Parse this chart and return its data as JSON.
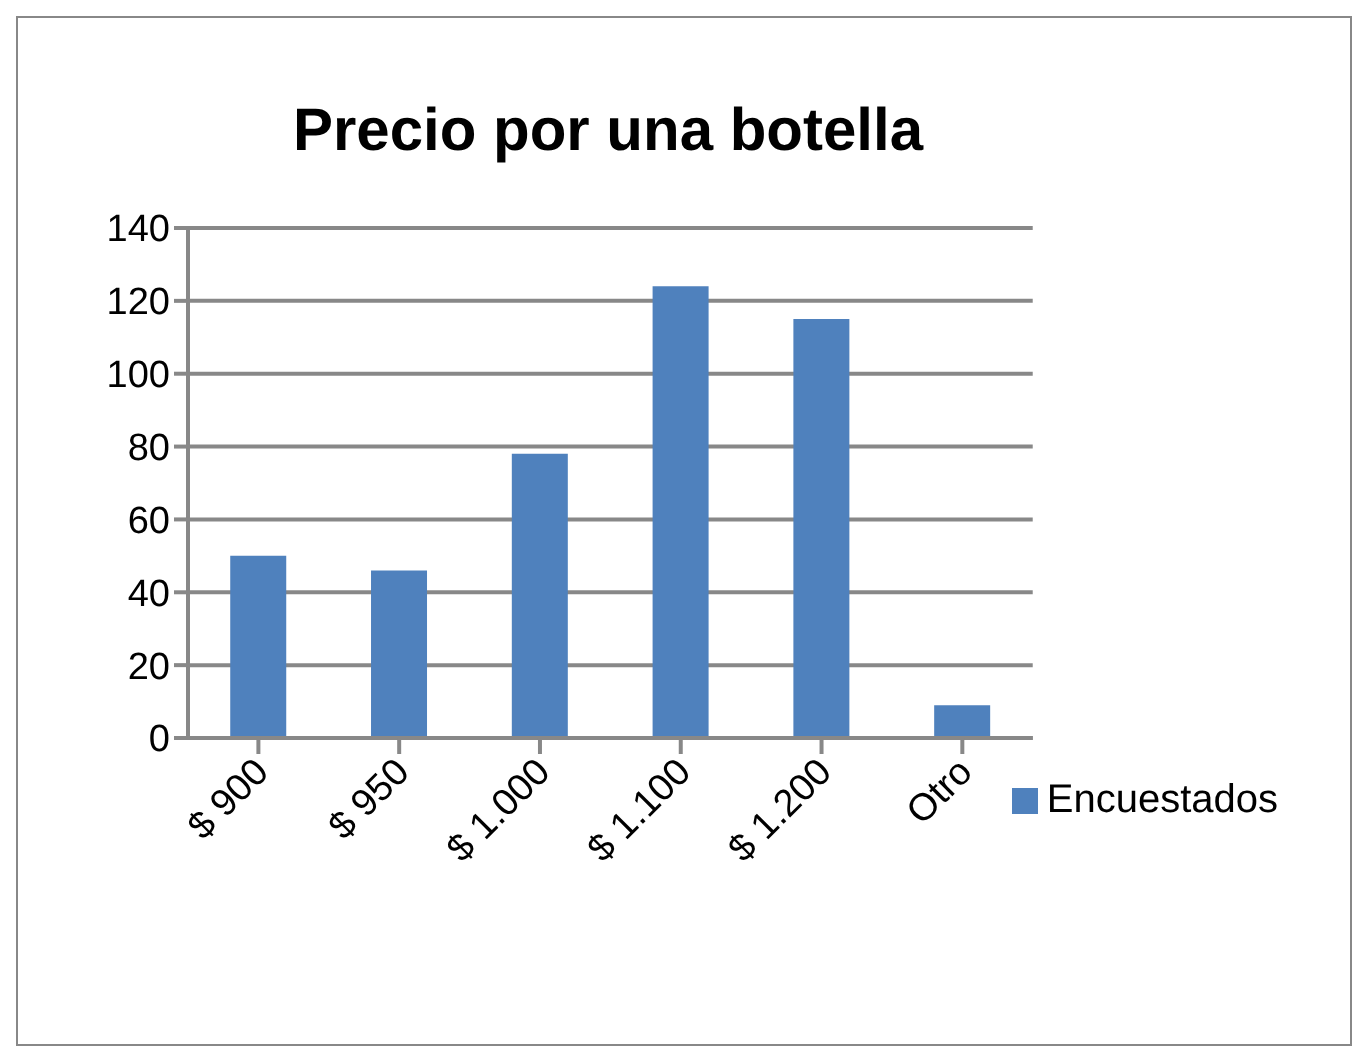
{
  "chart_data": {
    "type": "bar",
    "title": "Precio por una botella",
    "categories": [
      "$ 900",
      "$ 950",
      "$ 1.000",
      "$ 1.100",
      "$ 1.200",
      "Otro"
    ],
    "series": [
      {
        "name": "Encuestados",
        "color": "#4f81bd",
        "values": [
          50,
          46,
          78,
          124,
          115,
          9
        ]
      }
    ],
    "ylim": [
      0,
      140
    ],
    "yticks": [
      0,
      20,
      40,
      60,
      80,
      100,
      120,
      140
    ],
    "grid": "y",
    "legend": "right"
  }
}
